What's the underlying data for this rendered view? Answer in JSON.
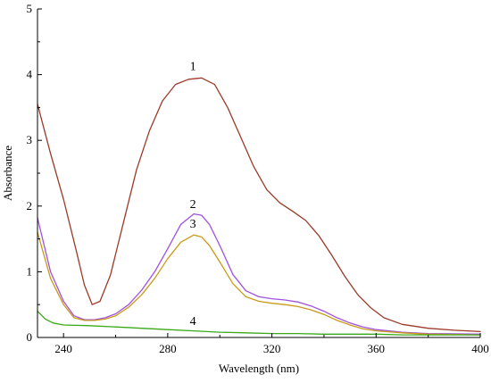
{
  "chart_data": {
    "type": "line",
    "title": "",
    "xlabel": "Wavelength (nm)",
    "ylabel": "Absorbance",
    "xlim": [
      230,
      400
    ],
    "ylim": [
      0,
      5
    ],
    "x_ticks": [
      240,
      280,
      320,
      360,
      400
    ],
    "y_ticks": [
      0,
      1,
      2,
      3,
      4,
      5
    ],
    "grid": false,
    "series": [
      {
        "name": "1",
        "color": "#9b3a28",
        "label_at": [
          289,
          4.0
        ],
        "points": [
          [
            230,
            3.55
          ],
          [
            235,
            2.8
          ],
          [
            240,
            2.1
          ],
          [
            245,
            1.3
          ],
          [
            248,
            0.8
          ],
          [
            251,
            0.5
          ],
          [
            254,
            0.55
          ],
          [
            258,
            0.95
          ],
          [
            263,
            1.75
          ],
          [
            268,
            2.55
          ],
          [
            273,
            3.15
          ],
          [
            278,
            3.6
          ],
          [
            283,
            3.85
          ],
          [
            288,
            3.93
          ],
          [
            293,
            3.95
          ],
          [
            298,
            3.85
          ],
          [
            303,
            3.5
          ],
          [
            308,
            3.05
          ],
          [
            313,
            2.6
          ],
          [
            318,
            2.25
          ],
          [
            323,
            2.05
          ],
          [
            328,
            1.92
          ],
          [
            333,
            1.78
          ],
          [
            338,
            1.55
          ],
          [
            343,
            1.25
          ],
          [
            348,
            0.93
          ],
          [
            353,
            0.65
          ],
          [
            358,
            0.45
          ],
          [
            363,
            0.3
          ],
          [
            370,
            0.2
          ],
          [
            380,
            0.14
          ],
          [
            390,
            0.11
          ],
          [
            400,
            0.09
          ]
        ]
      },
      {
        "name": "2",
        "color": "#a050e0",
        "label_at": [
          289,
          1.9
        ],
        "points": [
          [
            230,
            1.82
          ],
          [
            235,
            1.0
          ],
          [
            240,
            0.55
          ],
          [
            244,
            0.33
          ],
          [
            248,
            0.27
          ],
          [
            252,
            0.27
          ],
          [
            256,
            0.3
          ],
          [
            260,
            0.36
          ],
          [
            265,
            0.5
          ],
          [
            270,
            0.72
          ],
          [
            275,
            1.0
          ],
          [
            280,
            1.35
          ],
          [
            285,
            1.72
          ],
          [
            290,
            1.88
          ],
          [
            293,
            1.86
          ],
          [
            296,
            1.72
          ],
          [
            300,
            1.4
          ],
          [
            305,
            0.96
          ],
          [
            310,
            0.71
          ],
          [
            315,
            0.62
          ],
          [
            320,
            0.59
          ],
          [
            325,
            0.57
          ],
          [
            330,
            0.54
          ],
          [
            335,
            0.48
          ],
          [
            340,
            0.4
          ],
          [
            345,
            0.3
          ],
          [
            350,
            0.22
          ],
          [
            355,
            0.16
          ],
          [
            360,
            0.12
          ],
          [
            370,
            0.08
          ],
          [
            380,
            0.06
          ],
          [
            400,
            0.05
          ]
        ]
      },
      {
        "name": "3",
        "color": "#c99a1a",
        "label_at": [
          289,
          1.6
        ],
        "points": [
          [
            230,
            1.6
          ],
          [
            235,
            0.9
          ],
          [
            240,
            0.5
          ],
          [
            244,
            0.3
          ],
          [
            248,
            0.26
          ],
          [
            252,
            0.26
          ],
          [
            256,
            0.28
          ],
          [
            260,
            0.33
          ],
          [
            265,
            0.46
          ],
          [
            270,
            0.65
          ],
          [
            275,
            0.9
          ],
          [
            280,
            1.2
          ],
          [
            285,
            1.45
          ],
          [
            290,
            1.56
          ],
          [
            293,
            1.53
          ],
          [
            296,
            1.4
          ],
          [
            300,
            1.15
          ],
          [
            305,
            0.82
          ],
          [
            310,
            0.62
          ],
          [
            315,
            0.55
          ],
          [
            320,
            0.52
          ],
          [
            325,
            0.5
          ],
          [
            330,
            0.47
          ],
          [
            335,
            0.42
          ],
          [
            340,
            0.35
          ],
          [
            345,
            0.26
          ],
          [
            350,
            0.19
          ],
          [
            355,
            0.13
          ],
          [
            360,
            0.1
          ],
          [
            370,
            0.07
          ],
          [
            380,
            0.05
          ],
          [
            400,
            0.04
          ]
        ]
      },
      {
        "name": "4",
        "color": "#3aa81a",
        "label_at": [
          289,
          0.12
        ],
        "points": [
          [
            230,
            0.4
          ],
          [
            233,
            0.28
          ],
          [
            236,
            0.22
          ],
          [
            240,
            0.19
          ],
          [
            250,
            0.18
          ],
          [
            260,
            0.16
          ],
          [
            270,
            0.14
          ],
          [
            280,
            0.12
          ],
          [
            290,
            0.1
          ],
          [
            300,
            0.08
          ],
          [
            310,
            0.07
          ],
          [
            320,
            0.06
          ],
          [
            330,
            0.06
          ],
          [
            340,
            0.05
          ],
          [
            350,
            0.05
          ],
          [
            360,
            0.05
          ],
          [
            370,
            0.04
          ],
          [
            380,
            0.04
          ],
          [
            390,
            0.04
          ],
          [
            400,
            0.04
          ]
        ]
      }
    ]
  }
}
